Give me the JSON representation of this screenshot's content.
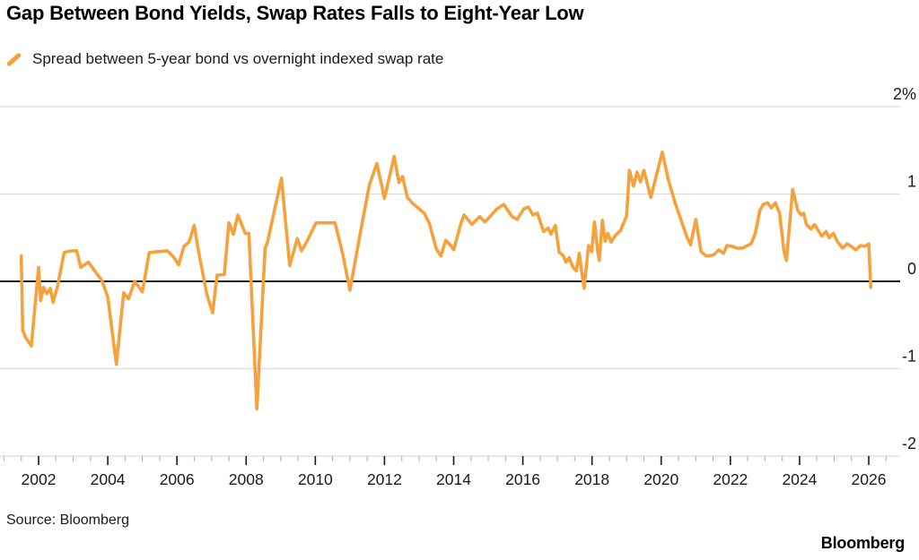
{
  "header": {
    "title": "Gap Between Bond Yields, Swap Rates Falls to Eight-Year Low"
  },
  "legend": {
    "label": "Spread between 5-year bond vs overnight indexed swap rate"
  },
  "footer": {
    "source": "Source: Bloomberg",
    "logo": "Bloomberg"
  },
  "colors": {
    "line": "#F5A23C",
    "grid": "#DCDCDC",
    "zero_line": "#1A1A1A",
    "tick_major": "#1A1A1A",
    "tick_minor": "#B9B9B9",
    "text": "#1A1A1A"
  },
  "chart_data": {
    "type": "line",
    "title": "Gap Between Bond Yields, Swap Rates Falls to Eight-Year Low",
    "xlabel": "",
    "ylabel": "",
    "y_unit": "%",
    "ylim": [
      -2,
      2
    ],
    "xlim": [
      2001.0,
      2026.6
    ],
    "grid": true,
    "legend_position": "top-left",
    "y_ticks": [
      {
        "value": 2,
        "label": "2%"
      },
      {
        "value": 1,
        "label": "1"
      },
      {
        "value": 0,
        "label": "0"
      },
      {
        "value": -1,
        "label": "-1"
      },
      {
        "value": -2,
        "label": "-2"
      }
    ],
    "x_major_ticks": [
      2002,
      2004,
      2006,
      2008,
      2010,
      2012,
      2014,
      2016,
      2018,
      2020,
      2022,
      2024,
      2026
    ],
    "x_minor_step": 0.5,
    "series": [
      {
        "name": "Spread between 5-year bond vs overnight indexed swap rate",
        "color": "#F5A23C",
        "points": [
          [
            2001.5,
            0.29
          ],
          [
            2001.54,
            -0.56
          ],
          [
            2001.62,
            -0.64
          ],
          [
            2001.79,
            -0.74
          ],
          [
            2002.0,
            0.16
          ],
          [
            2002.06,
            -0.22
          ],
          [
            2002.14,
            -0.07
          ],
          [
            2002.24,
            -0.14
          ],
          [
            2002.34,
            -0.08
          ],
          [
            2002.42,
            -0.24
          ],
          [
            2002.55,
            -0.05
          ],
          [
            2002.74,
            0.33
          ],
          [
            2002.96,
            0.35
          ],
          [
            2003.1,
            0.35
          ],
          [
            2003.22,
            0.16
          ],
          [
            2003.44,
            0.22
          ],
          [
            2003.66,
            0.1
          ],
          [
            2003.83,
            0.01
          ],
          [
            2004.0,
            -0.18
          ],
          [
            2004.25,
            -0.95
          ],
          [
            2004.46,
            -0.13
          ],
          [
            2004.6,
            -0.2
          ],
          [
            2004.78,
            0.0
          ],
          [
            2005.0,
            -0.12
          ],
          [
            2005.2,
            0.33
          ],
          [
            2005.45,
            0.34
          ],
          [
            2005.72,
            0.35
          ],
          [
            2005.9,
            0.28
          ],
          [
            2006.05,
            0.19
          ],
          [
            2006.2,
            0.4
          ],
          [
            2006.35,
            0.45
          ],
          [
            2006.5,
            0.64
          ],
          [
            2006.62,
            0.35
          ],
          [
            2006.86,
            -0.14
          ],
          [
            2007.03,
            -0.36
          ],
          [
            2007.16,
            0.07
          ],
          [
            2007.37,
            0.08
          ],
          [
            2007.5,
            0.67
          ],
          [
            2007.63,
            0.54
          ],
          [
            2007.76,
            0.76
          ],
          [
            2007.97,
            0.55
          ],
          [
            2008.08,
            0.55
          ],
          [
            2008.31,
            -1.46
          ],
          [
            2008.55,
            0.38
          ],
          [
            2008.62,
            0.45
          ],
          [
            2009.02,
            1.18
          ],
          [
            2009.26,
            0.18
          ],
          [
            2009.48,
            0.49
          ],
          [
            2009.6,
            0.35
          ],
          [
            2009.75,
            0.45
          ],
          [
            2010.02,
            0.67
          ],
          [
            2010.3,
            0.67
          ],
          [
            2010.57,
            0.67
          ],
          [
            2010.8,
            0.3
          ],
          [
            2011.0,
            -0.1
          ],
          [
            2011.3,
            0.55
          ],
          [
            2011.56,
            1.1
          ],
          [
            2011.78,
            1.35
          ],
          [
            2012.0,
            0.95
          ],
          [
            2012.28,
            1.43
          ],
          [
            2012.42,
            1.13
          ],
          [
            2012.52,
            1.2
          ],
          [
            2012.66,
            0.96
          ],
          [
            2012.8,
            0.9
          ],
          [
            2013.0,
            0.83
          ],
          [
            2013.15,
            0.78
          ],
          [
            2013.3,
            0.66
          ],
          [
            2013.5,
            0.37
          ],
          [
            2013.63,
            0.29
          ],
          [
            2013.77,
            0.47
          ],
          [
            2013.9,
            0.42
          ],
          [
            2014.0,
            0.36
          ],
          [
            2014.2,
            0.65
          ],
          [
            2014.3,
            0.76
          ],
          [
            2014.53,
            0.65
          ],
          [
            2014.75,
            0.74
          ],
          [
            2014.9,
            0.68
          ],
          [
            2015.05,
            0.74
          ],
          [
            2015.25,
            0.83
          ],
          [
            2015.45,
            0.88
          ],
          [
            2015.69,
            0.74
          ],
          [
            2015.84,
            0.71
          ],
          [
            2016.03,
            0.83
          ],
          [
            2016.16,
            0.85
          ],
          [
            2016.29,
            0.76
          ],
          [
            2016.42,
            0.78
          ],
          [
            2016.6,
            0.57
          ],
          [
            2016.73,
            0.61
          ],
          [
            2016.81,
            0.54
          ],
          [
            2016.94,
            0.64
          ],
          [
            2017.05,
            0.33
          ],
          [
            2017.16,
            0.3
          ],
          [
            2017.25,
            0.22
          ],
          [
            2017.34,
            0.27
          ],
          [
            2017.45,
            0.16
          ],
          [
            2017.55,
            0.12
          ],
          [
            2017.63,
            0.32
          ],
          [
            2017.77,
            -0.08
          ],
          [
            2017.9,
            0.41
          ],
          [
            2017.99,
            0.34
          ],
          [
            2018.07,
            0.68
          ],
          [
            2018.16,
            0.36
          ],
          [
            2018.21,
            0.24
          ],
          [
            2018.3,
            0.7
          ],
          [
            2018.38,
            0.46
          ],
          [
            2018.46,
            0.55
          ],
          [
            2018.55,
            0.45
          ],
          [
            2018.68,
            0.53
          ],
          [
            2018.82,
            0.58
          ],
          [
            2019.0,
            0.75
          ],
          [
            2019.08,
            1.27
          ],
          [
            2019.2,
            1.09
          ],
          [
            2019.3,
            1.25
          ],
          [
            2019.4,
            1.14
          ],
          [
            2019.5,
            1.27
          ],
          [
            2019.7,
            0.96
          ],
          [
            2020.03,
            1.48
          ],
          [
            2020.2,
            1.17
          ],
          [
            2020.4,
            0.9
          ],
          [
            2020.6,
            0.67
          ],
          [
            2020.75,
            0.5
          ],
          [
            2020.85,
            0.42
          ],
          [
            2021.0,
            0.71
          ],
          [
            2021.15,
            0.34
          ],
          [
            2021.3,
            0.29
          ],
          [
            2021.5,
            0.3
          ],
          [
            2021.67,
            0.36
          ],
          [
            2021.8,
            0.32
          ],
          [
            2021.9,
            0.41
          ],
          [
            2022.05,
            0.4
          ],
          [
            2022.2,
            0.38
          ],
          [
            2022.35,
            0.38
          ],
          [
            2022.5,
            0.41
          ],
          [
            2022.6,
            0.43
          ],
          [
            2022.72,
            0.55
          ],
          [
            2022.85,
            0.81
          ],
          [
            2022.95,
            0.88
          ],
          [
            2023.08,
            0.9
          ],
          [
            2023.18,
            0.84
          ],
          [
            2023.3,
            0.9
          ],
          [
            2023.42,
            0.78
          ],
          [
            2023.55,
            0.34
          ],
          [
            2023.62,
            0.24
          ],
          [
            2023.8,
            1.05
          ],
          [
            2023.95,
            0.81
          ],
          [
            2024.05,
            0.76
          ],
          [
            2024.12,
            0.78
          ],
          [
            2024.2,
            0.65
          ],
          [
            2024.33,
            0.6
          ],
          [
            2024.43,
            0.65
          ],
          [
            2024.56,
            0.57
          ],
          [
            2024.64,
            0.52
          ],
          [
            2024.77,
            0.57
          ],
          [
            2024.85,
            0.5
          ],
          [
            2024.98,
            0.55
          ],
          [
            2025.1,
            0.45
          ],
          [
            2025.25,
            0.38
          ],
          [
            2025.37,
            0.43
          ],
          [
            2025.5,
            0.4
          ],
          [
            2025.63,
            0.36
          ],
          [
            2025.76,
            0.41
          ],
          [
            2025.88,
            0.4
          ],
          [
            2026.0,
            0.43
          ],
          [
            2026.06,
            -0.07
          ]
        ]
      }
    ]
  }
}
